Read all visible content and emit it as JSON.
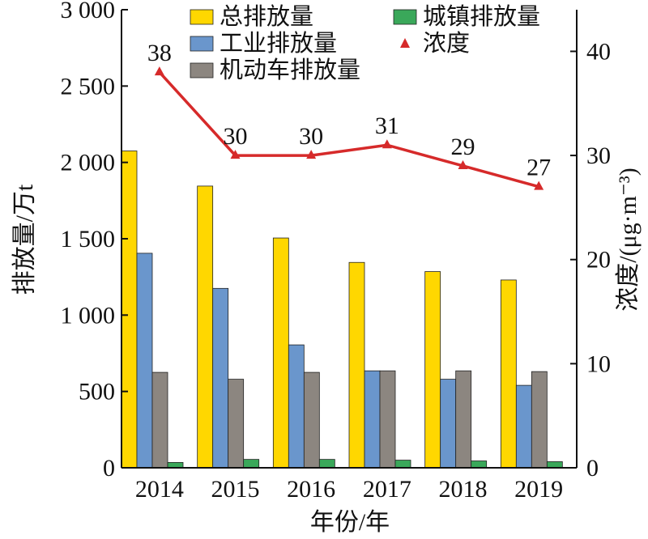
{
  "chart_data": {
    "type": "bar",
    "categories": [
      "2014",
      "2015",
      "2016",
      "2017",
      "2018",
      "2019"
    ],
    "xlabel": "年份/年",
    "ylabel": "排放量/万t",
    "y2label": "浓度/(μg·m⁻³)",
    "ylim": [
      0,
      3000
    ],
    "y2lim": [
      0,
      44
    ],
    "yticks": [
      "0",
      "500",
      "1 000",
      "1 500",
      "2 000",
      "2 500",
      "3 000"
    ],
    "y2ticks": [
      "0",
      "10",
      "20",
      "30",
      "40"
    ],
    "legend_position": "top",
    "series": [
      {
        "name": "总排放量",
        "type": "bar",
        "axis": "left",
        "color": "#ffd700",
        "values": [
          2075,
          1845,
          1505,
          1345,
          1285,
          1230
        ]
      },
      {
        "name": "工业排放量",
        "type": "bar",
        "axis": "left",
        "color": "#6a96cc",
        "values": [
          1405,
          1175,
          805,
          635,
          580,
          540
        ]
      },
      {
        "name": "机动车排放量",
        "type": "bar",
        "axis": "left",
        "color": "#8c8680",
        "values": [
          625,
          580,
          625,
          635,
          635,
          630
        ]
      },
      {
        "name": "城镇排放量",
        "type": "bar",
        "axis": "left",
        "color": "#3aa85a",
        "values": [
          35,
          55,
          55,
          50,
          45,
          40
        ]
      },
      {
        "name": "浓度",
        "type": "line",
        "axis": "right",
        "color": "#d62a2a",
        "values": [
          38,
          30,
          30,
          31,
          29,
          27
        ],
        "data_labels": [
          "38",
          "30",
          "30",
          "31",
          "29",
          "27"
        ]
      }
    ]
  }
}
